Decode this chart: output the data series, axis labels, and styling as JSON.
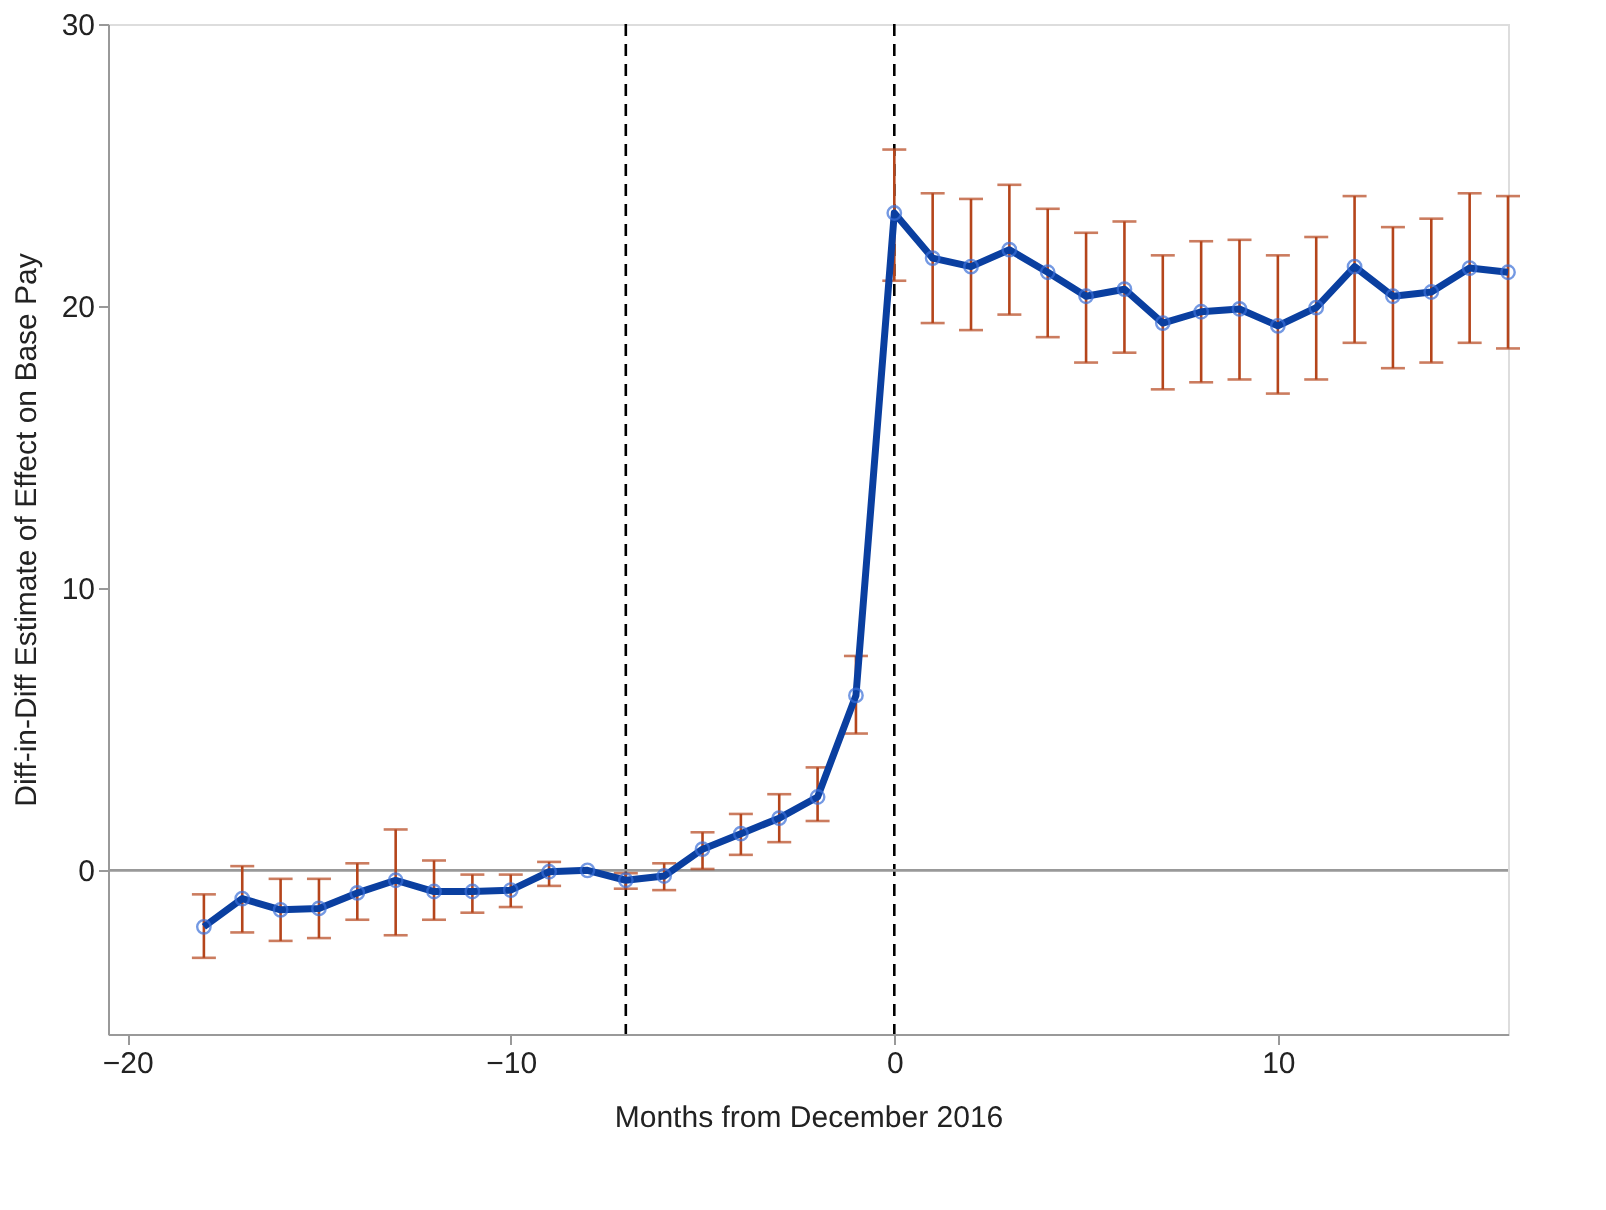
{
  "chart_data": {
    "type": "line",
    "xlabel": "Months from December 2016",
    "ylabel": "Diff-in-Diff Estimate of Effect on Base Pay",
    "x": [
      -18,
      -17,
      -16,
      -15,
      -14,
      -13,
      -12,
      -11,
      -10,
      -9,
      -8,
      -7,
      -6,
      -5,
      -4,
      -3,
      -2,
      -1,
      0,
      1,
      2,
      3,
      4,
      5,
      6,
      7,
      8,
      9,
      10,
      11,
      12,
      13,
      14,
      15,
      16
    ],
    "series": [
      {
        "color": "#0a3fa0",
        "values": [
          -2.0,
          -1.0,
          -1.4,
          -1.35,
          -0.8,
          -0.35,
          -0.75,
          -0.75,
          -0.7,
          -0.05,
          0.0,
          -0.35,
          -0.2,
          0.75,
          1.3,
          1.85,
          2.6,
          6.2,
          23.3,
          21.7,
          21.4,
          22.0,
          21.2,
          20.35,
          20.6,
          19.4,
          19.8,
          19.9,
          19.3,
          19.95,
          21.4,
          20.35,
          20.5,
          21.35,
          21.2
        ],
        "errors": [
          [
            -3.1,
            -0.85
          ],
          [
            -2.2,
            0.15
          ],
          [
            -2.5,
            -0.3
          ],
          [
            -2.4,
            -0.3
          ],
          [
            -1.75,
            0.25
          ],
          [
            -2.3,
            1.45
          ],
          [
            -1.75,
            0.35
          ],
          [
            -1.5,
            -0.15
          ],
          [
            -1.3,
            -0.15
          ],
          [
            -0.55,
            0.3
          ],
          null,
          [
            -0.65,
            -0.1
          ],
          [
            -0.7,
            0.25
          ],
          [
            0.05,
            1.35
          ],
          [
            0.55,
            2.0
          ],
          [
            1.0,
            2.7
          ],
          [
            1.75,
            3.65
          ],
          [
            4.85,
            7.6
          ],
          [
            20.9,
            25.55
          ],
          [
            19.4,
            24.0
          ],
          [
            19.15,
            23.8
          ],
          [
            19.7,
            24.3
          ],
          [
            18.9,
            23.45
          ],
          [
            18.0,
            22.6
          ],
          [
            18.35,
            23.0
          ],
          [
            17.05,
            21.8
          ],
          [
            17.3,
            22.3
          ],
          [
            17.4,
            22.35
          ],
          [
            16.9,
            21.8
          ],
          [
            17.4,
            22.45
          ],
          [
            18.7,
            23.9
          ],
          [
            17.8,
            22.8
          ],
          [
            18.0,
            23.1
          ],
          [
            18.7,
            24.0
          ],
          [
            18.5,
            23.9
          ]
        ]
      }
    ],
    "marker": "circle",
    "line_style": "solid",
    "grid": false,
    "xlim": [
      -20.5,
      16
    ],
    "xticks": [
      -20,
      -10,
      0,
      10
    ],
    "ylim": [
      -5.8,
      30
    ],
    "yticks": [
      0,
      10,
      20,
      30
    ],
    "ref_lines": [
      {
        "axis": "x",
        "value": -7,
        "line_style": "dashed",
        "color": "#000000"
      },
      {
        "axis": "x",
        "value": 0,
        "line_style": "dashed",
        "color": "#000000"
      },
      {
        "axis": "y",
        "value": 0,
        "line_style": "solid",
        "color": "#999999"
      }
    ]
  }
}
